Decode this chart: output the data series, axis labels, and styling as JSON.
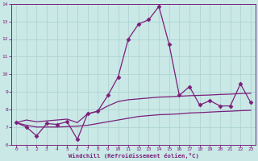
{
  "x": [
    0,
    1,
    2,
    3,
    4,
    5,
    6,
    7,
    8,
    9,
    10,
    11,
    12,
    13,
    14,
    15,
    16,
    17,
    18,
    19,
    20,
    21,
    22,
    23
  ],
  "line_main": [
    7.25,
    7.0,
    6.5,
    7.2,
    7.15,
    7.3,
    6.3,
    7.75,
    7.9,
    8.8,
    9.85,
    12.0,
    12.85,
    13.1,
    13.85,
    11.7,
    8.8,
    9.3,
    8.25,
    8.5,
    8.2,
    8.2,
    9.45,
    8.4
  ],
  "trend_upper": [
    7.25,
    7.4,
    7.3,
    7.35,
    7.4,
    7.45,
    7.25,
    7.75,
    7.9,
    8.2,
    8.45,
    8.55,
    8.6,
    8.65,
    8.7,
    8.72,
    8.75,
    8.78,
    8.8,
    8.82,
    8.85,
    8.87,
    8.9,
    8.92
  ],
  "trend_lower": [
    7.25,
    7.1,
    7.0,
    7.0,
    7.0,
    7.02,
    7.05,
    7.1,
    7.2,
    7.3,
    7.4,
    7.5,
    7.6,
    7.65,
    7.7,
    7.72,
    7.75,
    7.8,
    7.82,
    7.85,
    7.88,
    7.9,
    7.93,
    7.95
  ],
  "line_color": "#7b1f7b",
  "bg_color": "#c9e8e6",
  "grid_color": "#aed4d2",
  "xlabel": "Windchill (Refroidissement éolien,°C)",
  "ylim": [
    6,
    14
  ],
  "xlim": [
    -0.5,
    23.5
  ],
  "yticks": [
    6,
    7,
    8,
    9,
    10,
    11,
    12,
    13,
    14
  ],
  "xticks": [
    0,
    1,
    2,
    3,
    4,
    5,
    6,
    7,
    8,
    9,
    10,
    11,
    12,
    13,
    14,
    15,
    16,
    17,
    18,
    19,
    20,
    21,
    22,
    23
  ]
}
